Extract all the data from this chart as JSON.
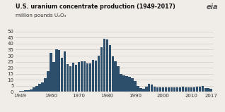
{
  "title": "U.S. uranium concentrate production (1949-2017)",
  "ylabel": "million pounds U₂O₃",
  "bar_color": "#2d4f6c",
  "background_color": "#f0ede8",
  "grid_color": "#d0cdc8",
  "ylim": [
    0,
    52
  ],
  "yticks": [
    0,
    5,
    10,
    15,
    20,
    25,
    30,
    35,
    40,
    45,
    50
  ],
  "xticks": [
    1949,
    1960,
    1970,
    1980,
    1990,
    2000,
    2010,
    2017
  ],
  "years": [
    1949,
    1950,
    1951,
    1952,
    1953,
    1954,
    1955,
    1956,
    1957,
    1958,
    1959,
    1960,
    1961,
    1962,
    1963,
    1964,
    1965,
    1966,
    1967,
    1968,
    1969,
    1970,
    1971,
    1972,
    1973,
    1974,
    1975,
    1976,
    1977,
    1978,
    1979,
    1980,
    1981,
    1982,
    1983,
    1984,
    1985,
    1986,
    1987,
    1988,
    1989,
    1990,
    1991,
    1992,
    1993,
    1994,
    1995,
    1996,
    1997,
    1998,
    1999,
    2000,
    2001,
    2002,
    2003,
    2004,
    2005,
    2006,
    2007,
    2008,
    2009,
    2010,
    2011,
    2012,
    2013,
    2014,
    2015,
    2016,
    2017
  ],
  "values": [
    0.8,
    1.0,
    1.2,
    1.5,
    2.0,
    3.5,
    5.0,
    6.5,
    8.0,
    11.5,
    17.0,
    32.5,
    25.0,
    35.0,
    34.5,
    28.5,
    33.5,
    23.0,
    21.5,
    24.0,
    22.5,
    24.5,
    25.5,
    25.5,
    23.5,
    23.5,
    26.5,
    26.0,
    30.0,
    37.0,
    44.0,
    43.7,
    38.5,
    29.5,
    25.5,
    21.0,
    15.0,
    13.5,
    13.0,
    12.5,
    11.5,
    8.9,
    5.0,
    3.0,
    2.5,
    4.5,
    6.5,
    5.8,
    4.5,
    4.0,
    4.0,
    3.5,
    4.0,
    3.5,
    3.5,
    3.5,
    3.5,
    4.0,
    4.5,
    4.0,
    3.5,
    4.0,
    4.0,
    4.5,
    4.2,
    4.9,
    3.3,
    2.9,
    2.4
  ]
}
